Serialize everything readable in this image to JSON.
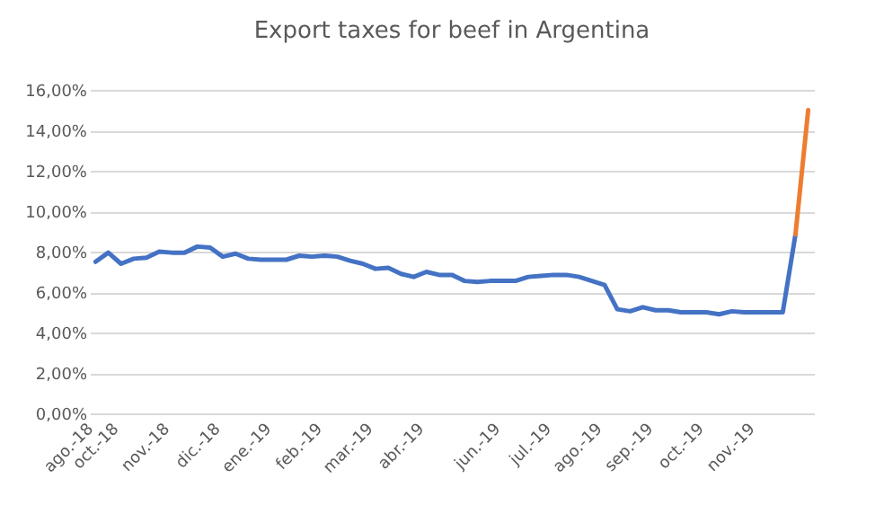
{
  "chart_data": {
    "type": "line",
    "title": "Export taxes for beef in Argentina",
    "categories": [
      "ago.-18",
      null,
      "oct.-18",
      null,
      null,
      null,
      "nov.-18",
      null,
      null,
      null,
      "dic.-18",
      null,
      null,
      null,
      "ene.-19",
      null,
      null,
      null,
      "feb.-19",
      null,
      null,
      null,
      "mar.-19",
      null,
      null,
      null,
      "abr.-19",
      null,
      null,
      null,
      null,
      null,
      "jun.-19",
      null,
      null,
      null,
      "jul.-19",
      null,
      null,
      null,
      "ago.-19",
      null,
      null,
      null,
      "sep.-19",
      null,
      null,
      null,
      "oct.-19",
      null,
      null,
      null,
      "nov.-19",
      null,
      null,
      null,
      null
    ],
    "series": [
      {
        "color": "#4472c4",
        "values": [
          7.5,
          7.95,
          7.4,
          7.65,
          7.7,
          8.0,
          7.95,
          7.95,
          8.25,
          8.2,
          7.75,
          7.9,
          7.65,
          7.6,
          7.6,
          7.6,
          7.8,
          7.75,
          7.8,
          7.75,
          7.55,
          7.4,
          7.15,
          7.2,
          6.9,
          6.75,
          7.0,
          6.85,
          6.85,
          6.55,
          6.5,
          6.55,
          6.55,
          6.55,
          6.75,
          6.8,
          6.85,
          6.85,
          6.75,
          6.55,
          6.35,
          5.15,
          5.05,
          5.25,
          5.1,
          5.1,
          5.0,
          5.0,
          5.0,
          4.9,
          5.05,
          5.0,
          5.0,
          5.0,
          5.0,
          8.85,
          null
        ]
      },
      {
        "color": "#ed7d31",
        "values": [
          null,
          null,
          null,
          null,
          null,
          null,
          null,
          null,
          null,
          null,
          null,
          null,
          null,
          null,
          null,
          null,
          null,
          null,
          null,
          null,
          null,
          null,
          null,
          null,
          null,
          null,
          null,
          null,
          null,
          null,
          null,
          null,
          null,
          null,
          null,
          null,
          null,
          null,
          null,
          null,
          null,
          null,
          null,
          null,
          null,
          null,
          null,
          null,
          null,
          null,
          null,
          null,
          null,
          null,
          null,
          8.85,
          15.0
        ]
      }
    ],
    "ylim": [
      0,
      16
    ],
    "yticks": [
      {
        "value": 0,
        "label": "0,00%"
      },
      {
        "value": 2,
        "label": "2,00%"
      },
      {
        "value": 4,
        "label": "4,00%"
      },
      {
        "value": 6,
        "label": "6,00%"
      },
      {
        "value": 8,
        "label": "8,00%"
      },
      {
        "value": 10,
        "label": "10,00%"
      },
      {
        "value": 12,
        "label": "12,00%"
      },
      {
        "value": 14,
        "label": "14,00%"
      },
      {
        "value": 16,
        "label": "16,00%"
      }
    ],
    "grid": "y",
    "marker": "none",
    "line_style": "solid"
  }
}
